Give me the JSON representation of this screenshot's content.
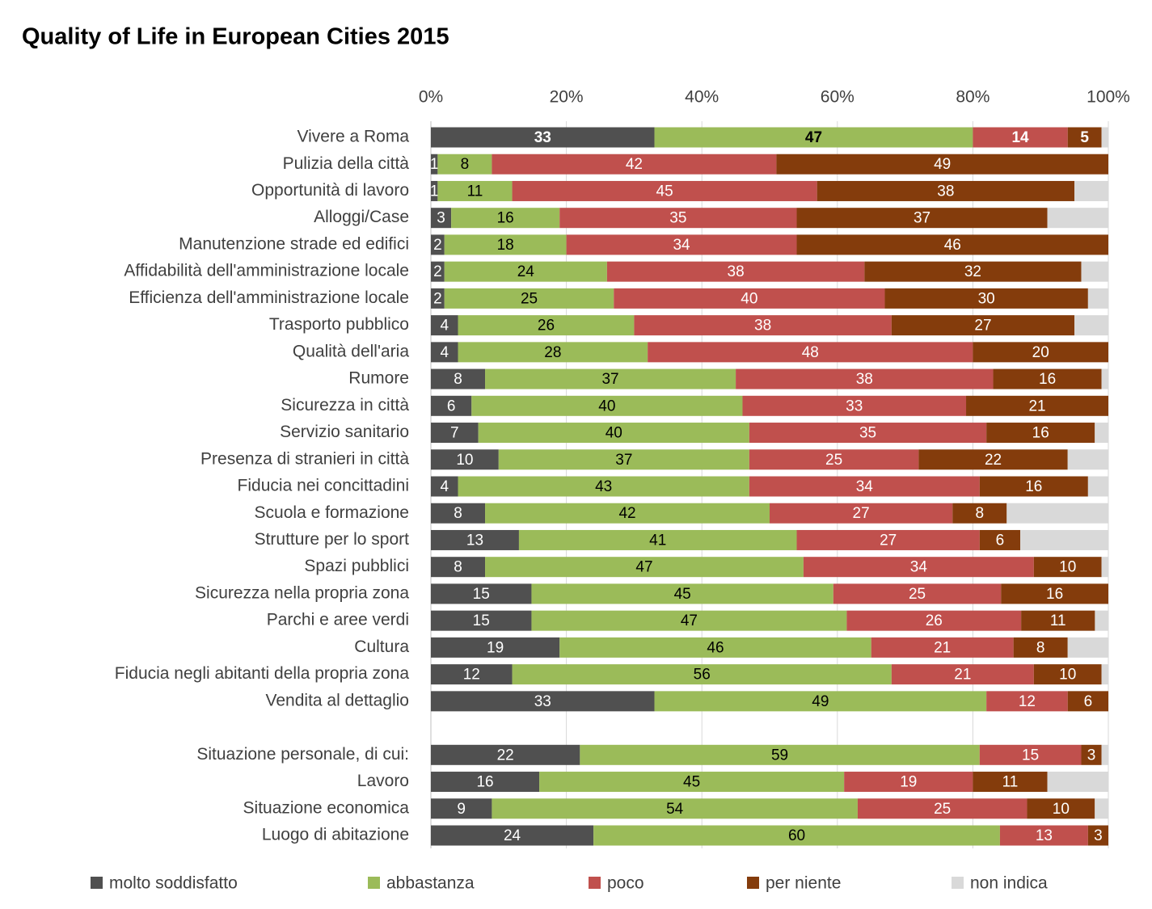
{
  "chart_data": {
    "type": "bar",
    "orientation": "horizontal",
    "stacked": "percent",
    "title": "Quality of Life in European Cities 2015",
    "categories": [
      "Vivere a Roma",
      "Pulizia della città",
      "Opportunità di lavoro",
      "Alloggi/Case",
      "Manutenzione strade ed edifici",
      "Affidabilità dell'amministrazione locale",
      "Efficienza dell'amministrazione locale",
      "Trasporto pubblico",
      "Qualità dell'aria",
      "Rumore",
      "Sicurezza in città",
      "Servizio sanitario",
      "Presenza di stranieri in città",
      "Fiducia nei concittadini",
      "Scuola e formazione",
      "Strutture per lo sport",
      "Spazi pubblici",
      "Sicurezza nella propria zona",
      "Parchi e aree verdi",
      "Cultura",
      "Fiducia negli abitanti della propria zona",
      "Vendita al dettaglio",
      null,
      "Situazione personale, di cui:",
      "Lavoro",
      "Situazione economica",
      "Luogo di abitazione"
    ],
    "series": [
      {
        "name": "molto soddisfatto",
        "color": "#505050",
        "label_color": "#ffffff",
        "values": [
          33,
          1,
          1,
          3,
          2,
          2,
          2,
          4,
          4,
          8,
          6,
          7,
          10,
          4,
          8,
          13,
          8,
          15,
          15,
          19,
          12,
          33,
          null,
          22,
          16,
          9,
          24
        ]
      },
      {
        "name": "abbastanza",
        "color": "#9bbb59",
        "label_color": "#000000",
        "values": [
          47,
          8,
          11,
          16,
          18,
          24,
          25,
          26,
          28,
          37,
          40,
          40,
          37,
          43,
          42,
          41,
          47,
          45,
          47,
          46,
          56,
          49,
          null,
          59,
          45,
          54,
          60
        ]
      },
      {
        "name": "poco",
        "color": "#c0504d",
        "label_color": "#ffffff",
        "values": [
          14,
          42,
          45,
          35,
          34,
          38,
          40,
          38,
          48,
          38,
          33,
          35,
          25,
          34,
          27,
          27,
          34,
          25,
          26,
          21,
          21,
          12,
          null,
          15,
          19,
          25,
          13
        ]
      },
      {
        "name": "per niente",
        "color": "#843c0c",
        "label_color": "#ffffff",
        "values": [
          5,
          49,
          38,
          37,
          46,
          32,
          30,
          27,
          20,
          16,
          21,
          16,
          22,
          16,
          8,
          6,
          10,
          16,
          11,
          8,
          10,
          6,
          null,
          3,
          11,
          10,
          3
        ]
      },
      {
        "name": "non indica",
        "color": "#d9d9d9",
        "values": [
          1,
          0,
          5,
          9,
          0,
          4,
          3,
          5,
          0,
          1,
          0,
          2,
          6,
          3,
          15,
          13,
          1,
          0,
          2,
          6,
          1,
          0,
          null,
          1,
          9,
          2,
          0
        ]
      }
    ],
    "xlim": [
      0,
      100
    ],
    "xticks": [
      {
        "value": 0,
        "label": "0%"
      },
      {
        "value": 20,
        "label": "20%"
      },
      {
        "value": 40,
        "label": "40%"
      },
      {
        "value": 60,
        "label": "60%"
      },
      {
        "value": 80,
        "label": "80%"
      },
      {
        "value": 100,
        "label": "100%"
      }
    ],
    "grid": true,
    "legend": "bottom"
  }
}
